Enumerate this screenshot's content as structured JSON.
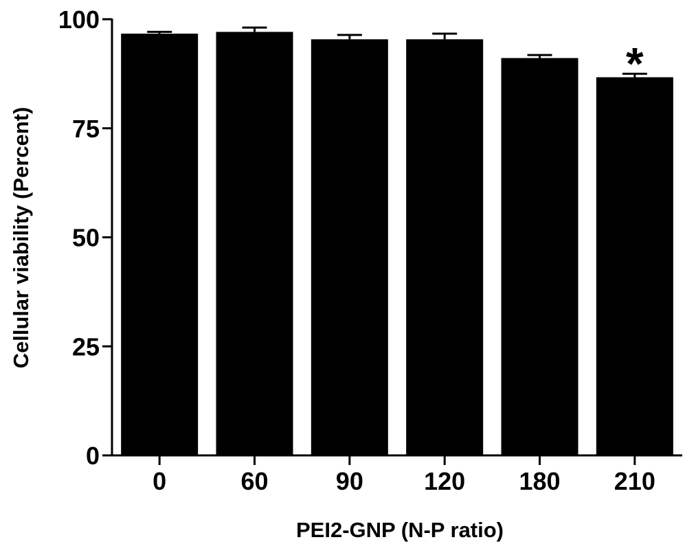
{
  "chart_data": {
    "type": "bar",
    "title": "",
    "xlabel": "PEI2-GNP (N-P ratio)",
    "ylabel": "Cellular viability (Percent)",
    "categories": [
      "0",
      "60",
      "90",
      "120",
      "180",
      "210"
    ],
    "values": [
      96.7,
      97.1,
      95.4,
      95.4,
      91.1,
      86.7
    ],
    "error_upper": [
      0.4,
      1.0,
      1.0,
      1.3,
      0.7,
      0.8
    ],
    "annotations": [
      {
        "category": "210",
        "text": "*"
      }
    ],
    "ylim": [
      0,
      100
    ],
    "yticks": [
      0,
      25,
      50,
      75,
      100
    ],
    "ytick_labels": [
      "0",
      "25",
      "50",
      "75",
      "100"
    ],
    "grid": false,
    "legend": "none",
    "bar_color": "#000000"
  }
}
